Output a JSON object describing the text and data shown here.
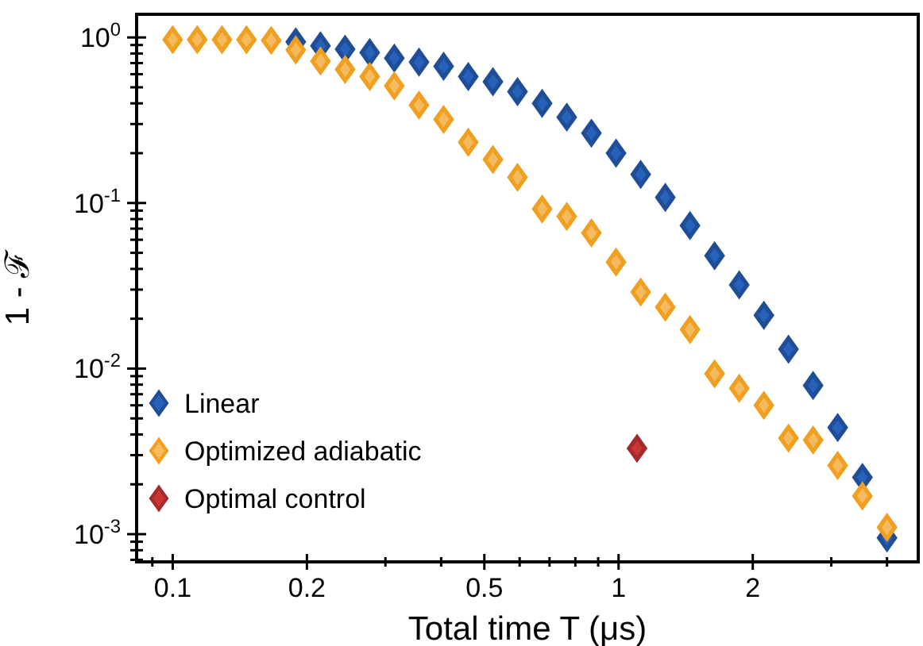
{
  "chart_data": {
    "type": "scatter",
    "xlabel": "Total time T (μs)",
    "ylabel": "1 - ℱ",
    "log": "xy",
    "marker": "diamond",
    "legend": "bottom left",
    "grid": false,
    "xlim": [
      0.083,
      4.7
    ],
    "ylim": [
      0.00068,
      1.38
    ],
    "xticks": [
      {
        "value": 0.09,
        "label": null
      },
      0.1,
      0.2,
      {
        "value": 0.3,
        "label": null
      },
      {
        "value": 0.4,
        "label": null
      },
      0.5,
      {
        "value": 0.6,
        "label": null
      },
      {
        "value": 0.7,
        "label": null
      },
      {
        "value": 0.8,
        "label": null
      },
      {
        "value": 0.9,
        "label": null
      },
      1,
      2,
      {
        "value": 3,
        "label": null
      },
      {
        "value": 4,
        "label": null
      }
    ],
    "yticks": [
      {
        "value": 0.0007,
        "label": null
      },
      {
        "value": 0.0008,
        "label": null
      },
      {
        "value": 0.0009,
        "label": null
      },
      {
        "value": 0.001,
        "label": "10$^{-3}$"
      },
      {
        "value": 0.002,
        "label": null
      },
      {
        "value": 0.003,
        "label": null
      },
      {
        "value": 0.004,
        "label": null
      },
      {
        "value": 0.005,
        "label": null
      },
      {
        "value": 0.006,
        "label": null
      },
      {
        "value": 0.007,
        "label": null
      },
      {
        "value": 0.008,
        "label": null
      },
      {
        "value": 0.009,
        "label": null
      },
      {
        "value": 0.01,
        "label": "10$^{-2}$"
      },
      {
        "value": 0.02,
        "label": null
      },
      {
        "value": 0.03,
        "label": null
      },
      {
        "value": 0.04,
        "label": null
      },
      {
        "value": 0.05,
        "label": null
      },
      {
        "value": 0.06,
        "label": null
      },
      {
        "value": 0.07,
        "label": null
      },
      {
        "value": 0.08,
        "label": null
      },
      {
        "value": 0.09,
        "label": null
      },
      {
        "value": 0.1,
        "label": "10$^{-1}$"
      },
      {
        "value": 0.2,
        "label": null
      },
      {
        "value": 0.3,
        "label": null
      },
      {
        "value": 0.4,
        "label": null
      },
      {
        "value": 0.5,
        "label": null
      },
      {
        "value": 0.6,
        "label": null
      },
      {
        "value": 0.7,
        "label": null
      },
      {
        "value": 0.8,
        "label": null
      },
      {
        "value": 0.9,
        "label": null
      },
      {
        "value": 1,
        "label": "10$^{0}$"
      }
    ],
    "x": [
      0.1,
      0.1135,
      0.129,
      0.1464,
      0.1663,
      0.1888,
      0.2145,
      0.2436,
      0.2766,
      0.3141,
      0.3568,
      0.4052,
      0.4601,
      0.5226,
      0.5934,
      0.6739,
      0.7653,
      0.8691,
      0.9871,
      1.121,
      1.273,
      1.446,
      1.642,
      1.865,
      2.118,
      2.405,
      2.731,
      3.101,
      3.523,
      4.0
    ],
    "series": [
      {
        "name": "Linear",
        "color": "#1f4e96",
        "values": [
          null,
          null,
          null,
          null,
          null,
          0.94,
          0.89,
          0.85,
          0.81,
          0.75,
          0.71,
          0.67,
          0.58,
          0.54,
          0.47,
          0.4,
          0.33,
          0.264,
          0.2,
          0.149,
          0.108,
          0.073,
          0.048,
          0.032,
          0.021,
          0.0131,
          0.0079,
          0.0044,
          0.0022,
          0.00095
        ]
      },
      {
        "name": "Optimized adiabatic",
        "color": "#f0a020",
        "values": [
          0.97,
          0.97,
          0.97,
          0.97,
          0.96,
          0.84,
          0.72,
          0.64,
          0.58,
          0.51,
          0.39,
          0.32,
          0.233,
          0.183,
          0.143,
          0.092,
          0.083,
          0.066,
          0.044,
          0.029,
          0.0235,
          0.0172,
          0.0093,
          0.0076,
          0.006,
          0.0038,
          0.0037,
          0.0026,
          0.0017,
          0.0011
        ]
      },
      {
        "name": "Optimal control",
        "color": "#a52a2a",
        "x": [
          1.1
        ],
        "values": [
          0.0033
        ]
      }
    ]
  }
}
